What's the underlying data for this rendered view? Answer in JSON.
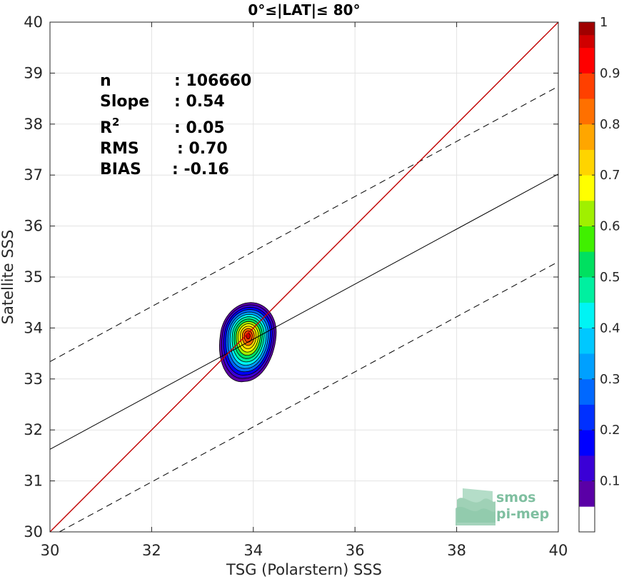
{
  "chart_data": {
    "type": "contour",
    "title": "0°≤|LAT|≤ 80°",
    "xlabel": "TSG (Polarstern) SSS",
    "ylabel": "Satellite SSS",
    "xlim": [
      30,
      40
    ],
    "ylim": [
      30,
      40
    ],
    "xticks": [
      "30",
      "32",
      "34",
      "36",
      "38",
      "40"
    ],
    "yticks": [
      "30",
      "31",
      "32",
      "33",
      "34",
      "35",
      "36",
      "37",
      "38",
      "39",
      "40"
    ],
    "grid": true,
    "stats": [
      {
        "label": "n",
        "value": ": 106660"
      },
      {
        "label": "Slope",
        "value": ": 0.54"
      },
      {
        "label": "R",
        "sup": "2",
        "value": ": 0.05"
      },
      {
        "label": "RMS",
        "value": ": 0.70"
      },
      {
        "label": "BIAS",
        "value": ": -0.16"
      }
    ],
    "lines": {
      "identity": {
        "x": [
          30,
          40
        ],
        "y": [
          30,
          40
        ],
        "color": "#c00000",
        "style": "solid"
      },
      "regression": {
        "x": [
          30,
          40
        ],
        "y": [
          31.62,
          37.02
        ],
        "color": "#000000",
        "style": "solid"
      },
      "upper_bound": {
        "x": [
          30,
          40
        ],
        "y": [
          33.34,
          38.74
        ],
        "color": "#000000",
        "style": "dashed"
      },
      "lower_bound": {
        "x": [
          30,
          40
        ],
        "y": [
          29.9,
          35.3
        ],
        "color": "#000000",
        "style": "dashed"
      }
    },
    "density_peak": {
      "x": 33.9,
      "y": 33.85
    },
    "density_extent": {
      "x": [
        33.35,
        34.45
      ],
      "y": [
        32.95,
        34.5
      ]
    },
    "colorbar": {
      "range": [
        0,
        1
      ],
      "ticks": [
        "0.1",
        "0.2",
        "0.3",
        "0.4",
        "0.5",
        "0.6",
        "0.7",
        "0.8",
        "0.9",
        "1"
      ],
      "levels": [
        {
          "v0": 0.0,
          "v1": 0.05,
          "color": "#ffffff"
        },
        {
          "v0": 0.05,
          "v1": 0.1,
          "color": "#5a00a6"
        },
        {
          "v0": 0.1,
          "v1": 0.15,
          "color": "#3a00d6"
        },
        {
          "v0": 0.15,
          "v1": 0.2,
          "color": "#0000ff"
        },
        {
          "v0": 0.2,
          "v1": 0.25,
          "color": "#0030ff"
        },
        {
          "v0": 0.25,
          "v1": 0.3,
          "color": "#0068ff"
        },
        {
          "v0": 0.3,
          "v1": 0.35,
          "color": "#00a0ff"
        },
        {
          "v0": 0.35,
          "v1": 0.4,
          "color": "#00c8ff"
        },
        {
          "v0": 0.4,
          "v1": 0.45,
          "color": "#00f4f4"
        },
        {
          "v0": 0.45,
          "v1": 0.5,
          "color": "#00f0a0"
        },
        {
          "v0": 0.5,
          "v1": 0.55,
          "color": "#00e060"
        },
        {
          "v0": 0.55,
          "v1": 0.6,
          "color": "#40f000"
        },
        {
          "v0": 0.6,
          "v1": 0.65,
          "color": "#a0f000"
        },
        {
          "v0": 0.65,
          "v1": 0.7,
          "color": "#ffff00"
        },
        {
          "v0": 0.7,
          "v1": 0.75,
          "color": "#ffd400"
        },
        {
          "v0": 0.75,
          "v1": 0.8,
          "color": "#ffa600"
        },
        {
          "v0": 0.8,
          "v1": 0.85,
          "color": "#ff7000"
        },
        {
          "v0": 0.85,
          "v1": 0.9,
          "color": "#ff4000"
        },
        {
          "v0": 0.9,
          "v1": 0.95,
          "color": "#ff0000"
        },
        {
          "v0": 0.95,
          "v1": 0.975,
          "color": "#d00000"
        },
        {
          "v0": 0.975,
          "v1": 1.0,
          "color": "#a00000"
        }
      ]
    }
  },
  "logo": {
    "line1": "smos",
    "line2": "pi-mep",
    "color": "#7fbfa0"
  }
}
